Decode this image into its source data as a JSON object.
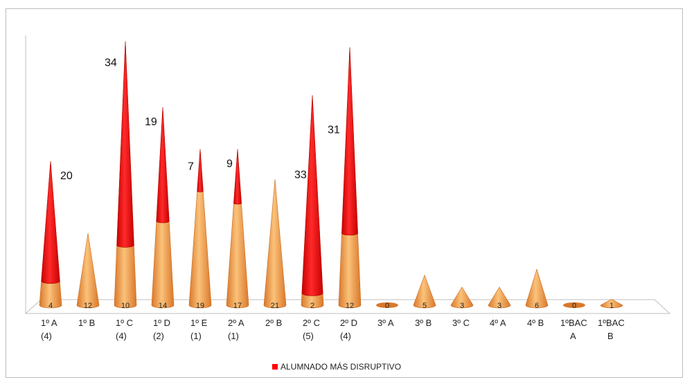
{
  "chart_data": {
    "type": "bar",
    "bar_shape": "cone",
    "stacked": true,
    "categories": [
      [
        "1º A",
        "(4)"
      ],
      [
        "1º B"
      ],
      [
        "1º C",
        "(4)"
      ],
      [
        "1º D",
        "(2)"
      ],
      [
        "1º E",
        "(1)"
      ],
      [
        "2º A",
        "(1)"
      ],
      [
        "2º B"
      ],
      [
        "2º C",
        "(5)"
      ],
      [
        "2º D",
        "(4)"
      ],
      [
        "3º A"
      ],
      [
        "3º B"
      ],
      [
        "3º C"
      ],
      [
        "4º A"
      ],
      [
        "4º B"
      ],
      [
        "1ºBAC",
        "A"
      ],
      [
        "1ºBAC",
        "B"
      ]
    ],
    "series": [
      {
        "values": [
          4,
          12,
          10,
          14,
          19,
          17,
          21,
          2,
          12,
          0,
          5,
          3,
          3,
          6,
          0,
          1
        ],
        "color": "#F39A3B"
      },
      {
        "name": "ALUMNADO MÁS DISRUPTIVO",
        "values": [
          20,
          0,
          34,
          19,
          7,
          9,
          0,
          33,
          31,
          0,
          0,
          0,
          0,
          0,
          0,
          0
        ],
        "color": "#FF0000"
      }
    ],
    "data_labels_bottom": [
      "4",
      "12",
      "10",
      "14",
      "19",
      "17",
      "21",
      "2",
      "12",
      "0",
      "5",
      "3",
      "3",
      "6",
      "0",
      "1"
    ],
    "data_labels_top": [
      "20",
      "",
      "34",
      "19",
      "7",
      "9",
      "",
      "33",
      "31",
      "",
      "",
      "",
      "",
      "",
      "",
      ""
    ],
    "title": "",
    "xlabel": "",
    "ylabel": "",
    "ylim": [
      0,
      45
    ],
    "grid": false,
    "legend": {
      "position": "bottom",
      "entries": [
        {
          "label": "ALUMNADO MÁS DISRUPTIVO",
          "color": "#FF0000"
        }
      ]
    }
  }
}
